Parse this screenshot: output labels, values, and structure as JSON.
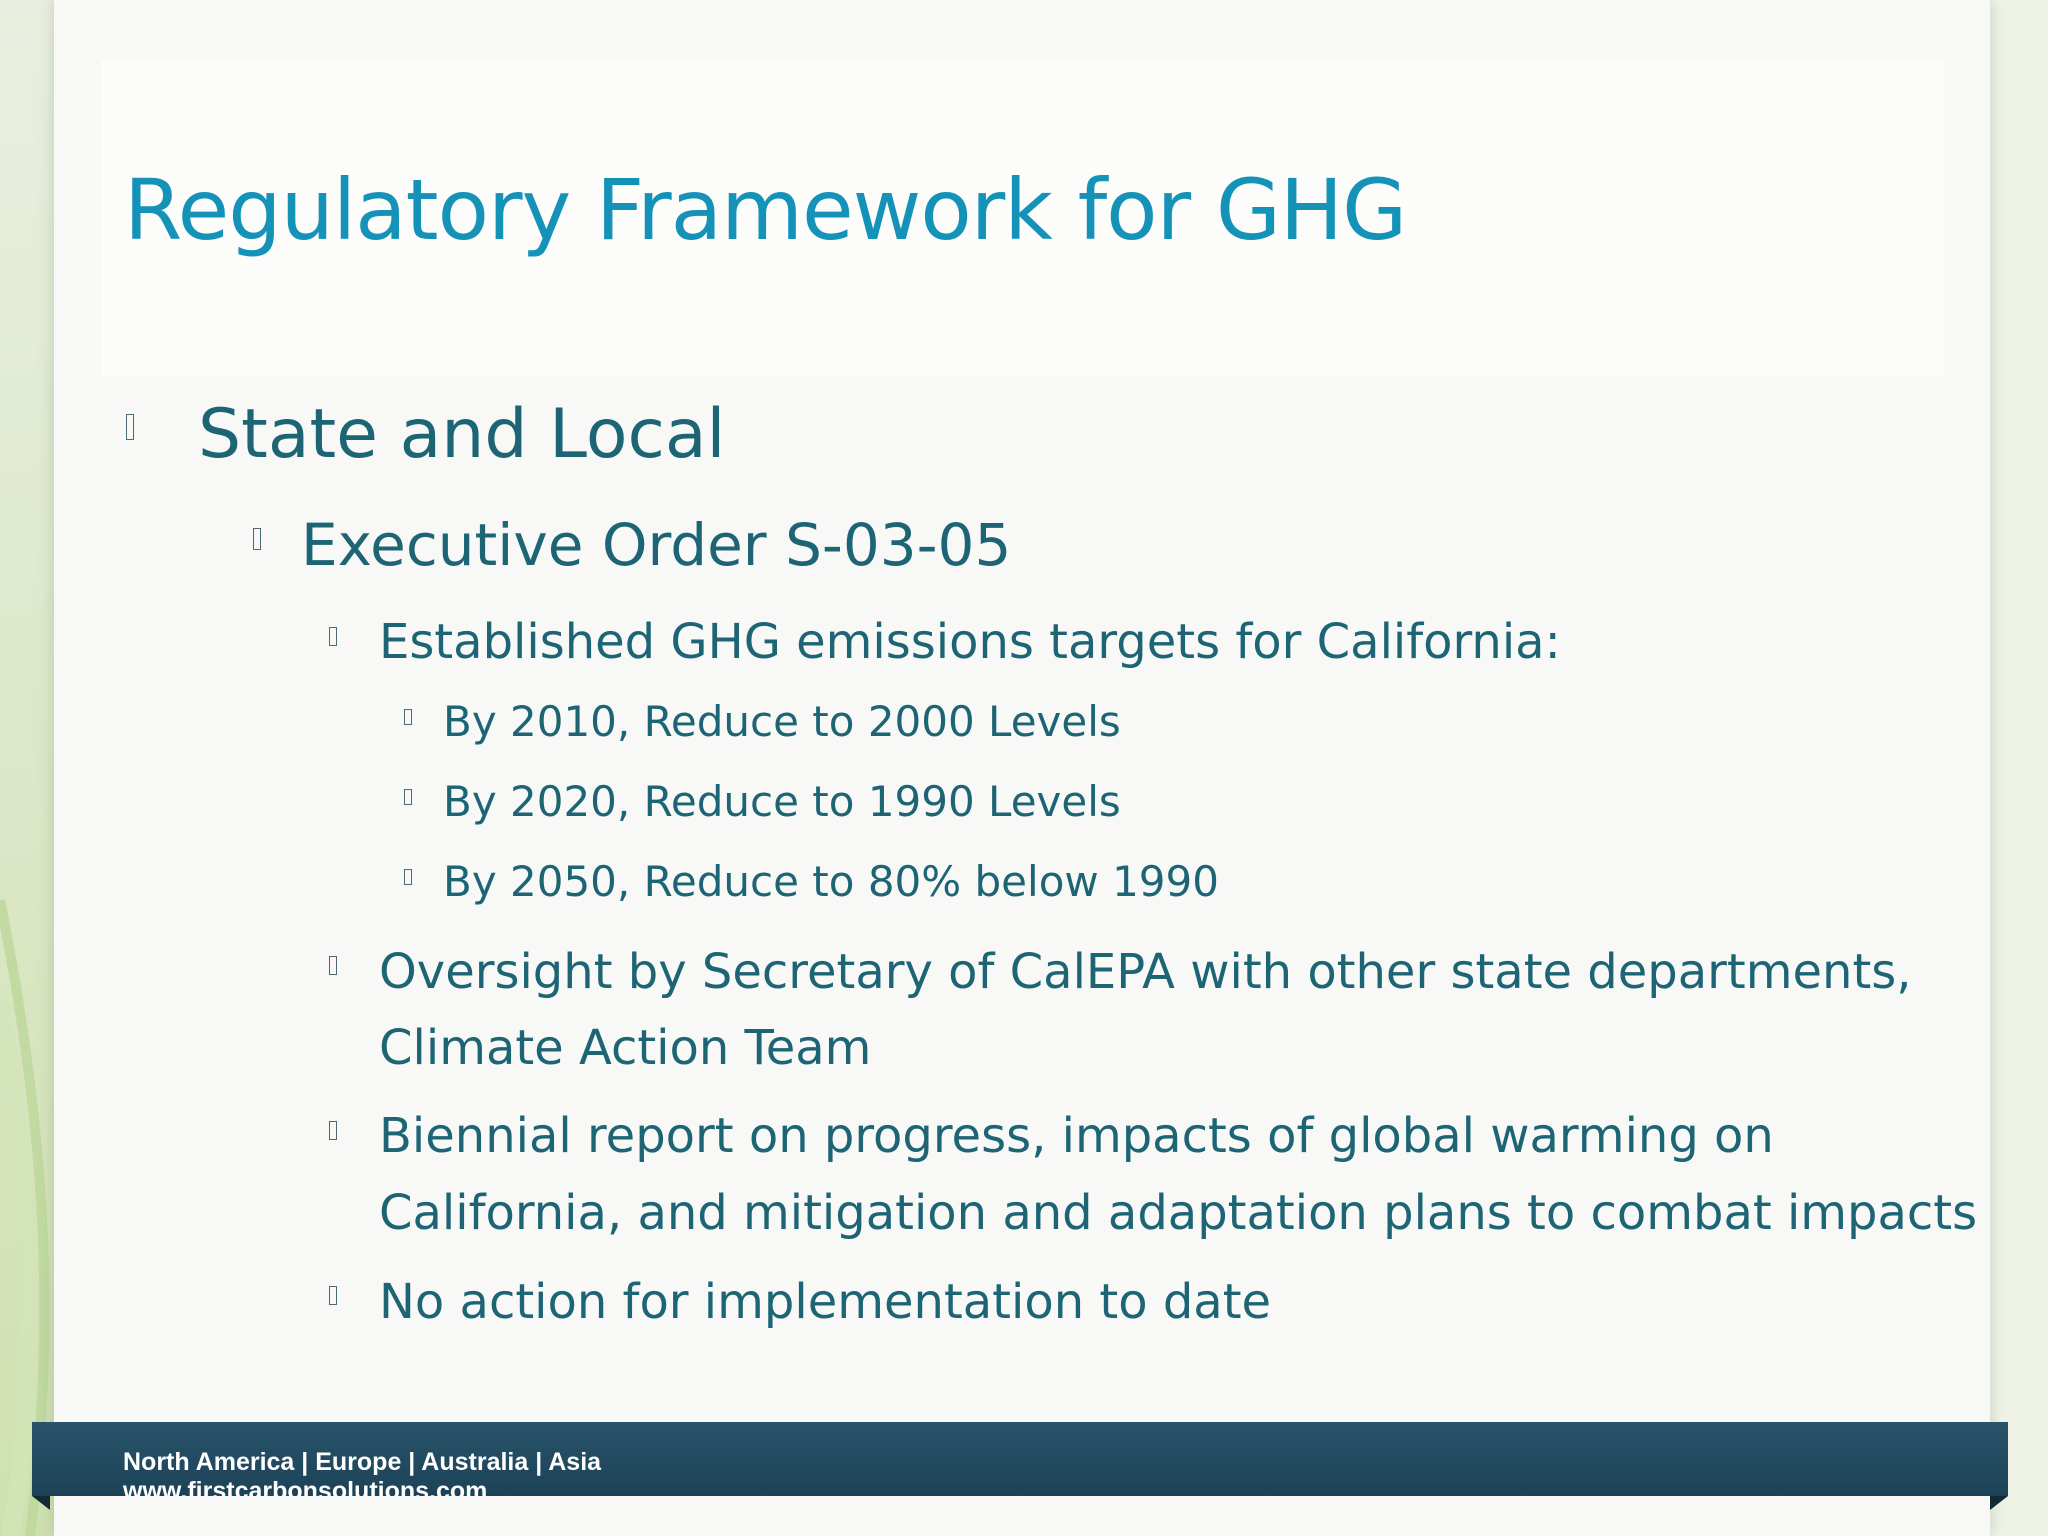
{
  "slide": {
    "title": "Regulatory Framework for GHG",
    "level1": "State and Local",
    "level2": "Executive Order S-03-05",
    "level3_targets": "Established GHG emissions targets for California:",
    "targets": [
      "By 2010, Reduce to 2000 Levels",
      "By 2020, Reduce to 1990 Levels",
      "By 2050, Reduce to 80% below 1990"
    ],
    "oversight": [
      "Oversight by Secretary of CalEPA with other state departments,",
      "Climate Action Team"
    ],
    "biennial": [
      "Biennial report on progress, impacts of global warming on",
      "California, and mitigation and adaptation plans to combat impacts"
    ],
    "no_action": "No action for implementation to date"
  },
  "footer": {
    "regions": "North America | Europe | Australia | Asia",
    "website": "www.firstcarbonsolutions.com"
  },
  "colors": {
    "title": "#1592b8",
    "body_text": "#1d6575",
    "footer_bar": "#1d4257"
  }
}
